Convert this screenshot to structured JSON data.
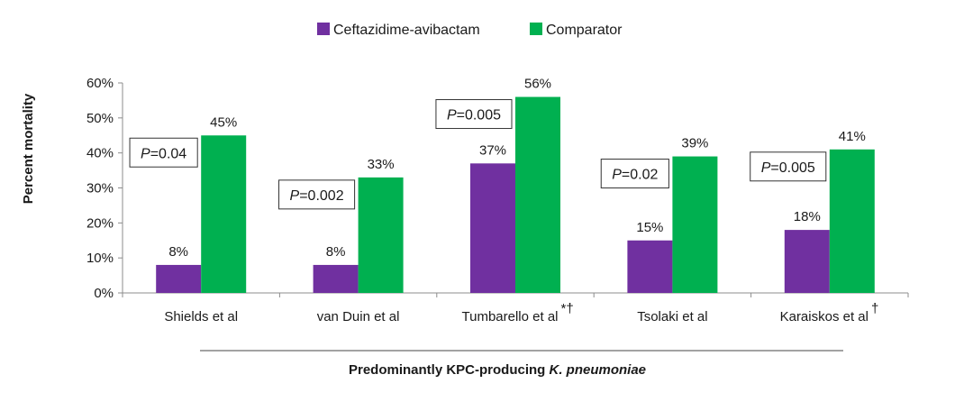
{
  "chart_data": {
    "type": "bar",
    "ylabel": "Percent mortality",
    "xlabel_prefix": "Predominantly KPC-producing ",
    "xlabel_italic": "K. pneumoniae",
    "ylim": [
      0,
      60
    ],
    "yticks": [
      {
        "value": 0,
        "label": "0%"
      },
      {
        "value": 10,
        "label": "10%"
      },
      {
        "value": 20,
        "label": "20%"
      },
      {
        "value": 30,
        "label": "30%"
      },
      {
        "value": 40,
        "label": "40%"
      },
      {
        "value": 50,
        "label": "50%"
      },
      {
        "value": 60,
        "label": "60%"
      }
    ],
    "categories": [
      {
        "label": "Shields et al",
        "mark": ""
      },
      {
        "label": "van Duin et al",
        "mark": ""
      },
      {
        "label": "Tumbarello et al",
        "mark": "*†"
      },
      {
        "label": "Tsolaki et al",
        "mark": ""
      },
      {
        "label": "Karaiskos et al",
        "mark": "†"
      }
    ],
    "series": [
      {
        "name": "Ceftazidime-avibactam",
        "color": "#7030a0",
        "values": [
          8,
          8,
          37,
          15,
          18
        ],
        "labels": [
          "8%",
          "8%",
          "37%",
          "15%",
          "18%"
        ]
      },
      {
        "name": "Comparator",
        "color": "#00b050",
        "values": [
          45,
          33,
          56,
          39,
          41
        ],
        "labels": [
          "45%",
          "33%",
          "56%",
          "39%",
          "41%"
        ]
      }
    ],
    "p_values": [
      {
        "prefix": "P",
        "value": "=0.04"
      },
      {
        "prefix": "P",
        "value": "=0.002"
      },
      {
        "prefix": "P",
        "value": "=0.005"
      },
      {
        "prefix": "P",
        "value": "=0.02"
      },
      {
        "prefix": "P",
        "value": "=0.005"
      }
    ],
    "legend_position": "top-center"
  }
}
